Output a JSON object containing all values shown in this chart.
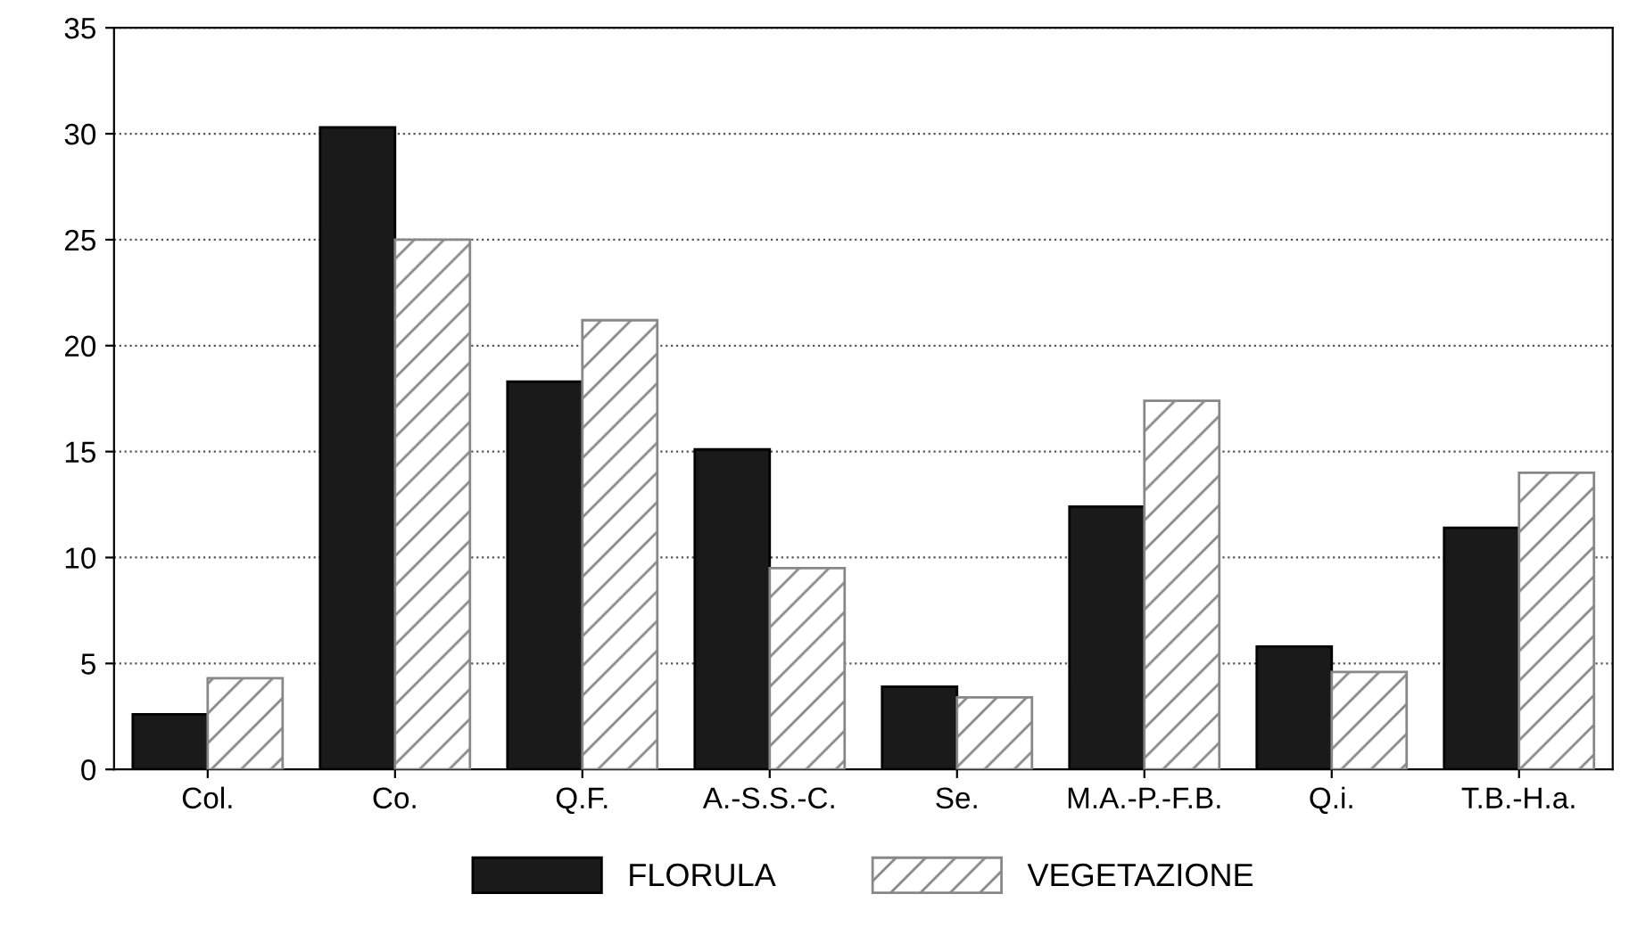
{
  "chart_data": {
    "type": "bar",
    "categories": [
      "Col.",
      "Co.",
      "Q.F.",
      "A.-S.S.-C.",
      "Se.",
      "M.A.-P.-F.B.",
      "Q.i.",
      "T.B.-H.a."
    ],
    "series": [
      {
        "name": "FLORULA",
        "color": "#1a1a1a",
        "values": [
          2.6,
          30.3,
          18.3,
          15.1,
          3.9,
          12.4,
          5.8,
          11.4
        ]
      },
      {
        "name": "VEGETAZIONE",
        "color": "#888888",
        "values": [
          4.3,
          25.0,
          21.2,
          9.5,
          3.4,
          17.4,
          4.6,
          14.0
        ]
      }
    ],
    "ylim": [
      0,
      35
    ],
    "yticks": [
      0,
      5,
      10,
      15,
      20,
      25,
      30,
      35
    ],
    "grid": "y",
    "legend": "bottom"
  }
}
